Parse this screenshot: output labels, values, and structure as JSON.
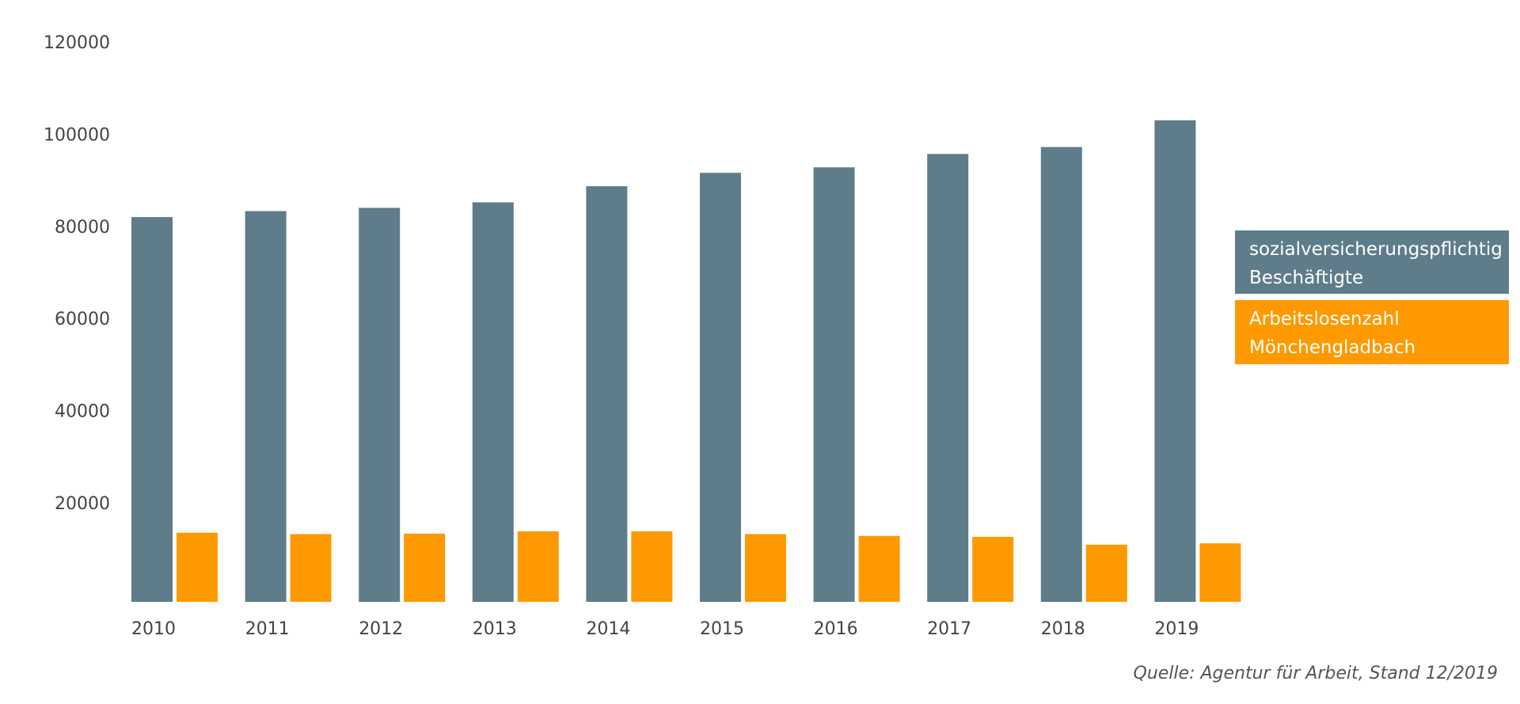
{
  "chart_data": {
    "type": "bar",
    "categories": [
      "2010",
      "2011",
      "2012",
      "2013",
      "2014",
      "2015",
      "2016",
      "2017",
      "2018",
      "2019"
    ],
    "series": [
      {
        "name": "sozialversicherungspflichtig Beschäftigte",
        "legend_lines": [
          "sozialversicherungspflichtig",
          "Beschäftigte"
        ],
        "color": "#5f7c8a",
        "values": [
          82000,
          83300,
          84000,
          85200,
          88700,
          91600,
          92800,
          95700,
          97200,
          103000
        ]
      },
      {
        "name": "Arbeitslosenzahl Mönchengladbach",
        "legend_lines": [
          "Arbeitslosenzahl",
          "Mönchengladbach"
        ],
        "color": "#ff9900",
        "values": [
          13500,
          13200,
          13300,
          13800,
          13800,
          13200,
          12800,
          12600,
          10900,
          11200
        ]
      }
    ],
    "yticks": [
      20000,
      40000,
      60000,
      80000,
      100000,
      120000
    ],
    "ylim": [
      -1500,
      120000
    ],
    "legend_position": "right",
    "grid": false,
    "title": "",
    "xlabel": "",
    "ylabel": ""
  },
  "source": "Quelle: Agentur für Arbeit, Stand 12/2019"
}
